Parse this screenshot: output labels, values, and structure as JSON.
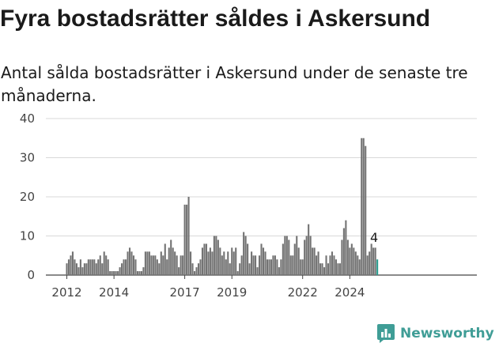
{
  "title": "Fyra bostadsrätter såldes i Askersund",
  "subtitle": "Antal sålda bostadsrätter i Askersund under de senaste tre månaderna.",
  "brand": {
    "name": "Newsworthy",
    "logo_icon": "bar-chart-logo-icon"
  },
  "colors": {
    "bar": "#737373",
    "highlight": "#2a9d8f",
    "grid": "#d8d8d8",
    "axis": "#444444",
    "brand": "#3f9d96"
  },
  "chart_data": {
    "type": "bar",
    "x_type": "monthly",
    "start_month": "2012-01",
    "ylim": [
      0,
      40
    ],
    "yticks": [
      0,
      10,
      20,
      30,
      40
    ],
    "xticks": [
      "2012",
      "2014",
      "2017",
      "2019",
      "2022",
      "2024"
    ],
    "values": [
      3,
      4,
      5,
      6,
      4,
      3,
      2,
      4,
      2,
      3,
      3,
      4,
      4,
      4,
      4,
      3,
      4,
      5,
      3,
      6,
      5,
      4,
      1,
      1,
      1,
      1,
      1,
      2,
      3,
      4,
      4,
      6,
      7,
      6,
      5,
      4,
      1,
      1,
      1,
      2,
      6,
      6,
      6,
      5,
      5,
      5,
      4,
      3,
      6,
      5,
      8,
      4,
      7,
      9,
      7,
      6,
      5,
      2,
      5,
      5,
      18,
      18,
      20,
      6,
      3,
      1,
      2,
      3,
      4,
      7,
      8,
      8,
      6,
      7,
      6,
      10,
      10,
      9,
      7,
      5,
      6,
      4,
      6,
      3,
      7,
      6,
      7,
      1,
      3,
      5,
      11,
      10,
      8,
      3,
      6,
      5,
      5,
      2,
      5,
      8,
      7,
      6,
      4,
      4,
      4,
      5,
      5,
      4,
      2,
      4,
      8,
      10,
      10,
      9,
      5,
      5,
      8,
      10,
      7,
      4,
      4,
      9,
      10,
      13,
      10,
      7,
      7,
      5,
      6,
      3,
      3,
      2,
      5,
      3,
      5,
      6,
      5,
      4,
      3,
      3,
      9,
      12,
      14,
      9,
      7,
      8,
      7,
      6,
      5,
      4,
      35,
      35,
      33,
      5,
      6,
      8,
      7,
      7,
      4
    ],
    "highlight_last": true,
    "annotation": {
      "label": "4"
    }
  }
}
